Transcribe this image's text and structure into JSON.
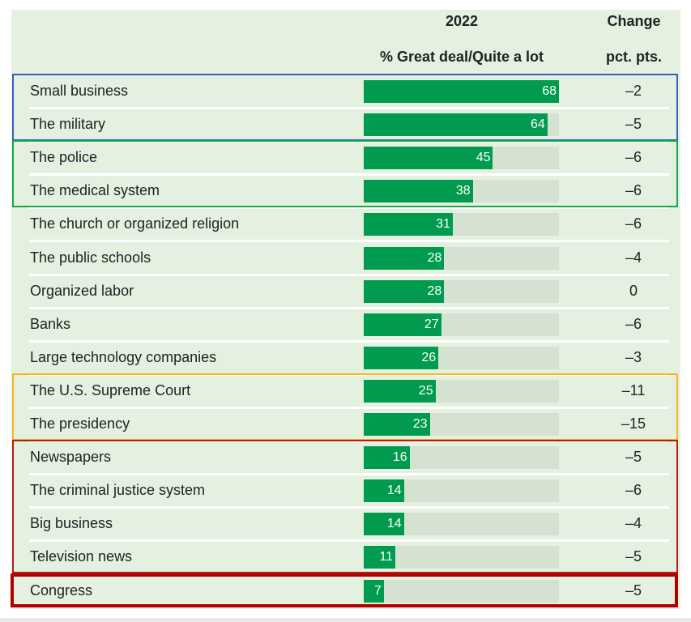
{
  "header": {
    "col1_top": "2022",
    "col1_sub": "% Great deal/Quite a lot",
    "col2_top": "Change",
    "col2_sub": "pct. pts."
  },
  "colors": {
    "bar": "#009b4e",
    "track": "#d5e2d2",
    "panel": "#e4f1e1",
    "group_blue": "#3b5fbf",
    "group_green": "#1aa64a",
    "group_yellow": "#f2b81e",
    "group_red": "#b31c1c",
    "group_red_dark": "#b00000"
  },
  "chart_data": {
    "type": "bar",
    "orientation": "horizontal",
    "title": "",
    "xlabel": "% Great deal/Quite a lot",
    "xlim": [
      0,
      68
    ],
    "categories": [
      "Small business",
      "The military",
      "The police",
      "The medical system",
      "The church or organized religion",
      "The public schools",
      "Organized labor",
      "Banks",
      "Large technology companies",
      "The U.S. Supreme Court",
      "The presidency",
      "Newspapers",
      "The criminal justice system",
      "Big business",
      "Television news",
      "Congress"
    ],
    "values": [
      68,
      64,
      45,
      38,
      31,
      28,
      28,
      27,
      26,
      25,
      23,
      16,
      14,
      14,
      11,
      7
    ],
    "change": [
      "–2",
      "–5",
      "–6",
      "–6",
      "–6",
      "–4",
      "0",
      "–6",
      "–3",
      "–11",
      "–15",
      "–5",
      "–6",
      "–4",
      "–5",
      "–5"
    ],
    "groups": [
      {
        "name": "blue",
        "rows": [
          0,
          1
        ]
      },
      {
        "name": "green",
        "rows": [
          2,
          3
        ]
      },
      {
        "name": "yellow",
        "rows": [
          9,
          10
        ]
      },
      {
        "name": "red",
        "rows": [
          11,
          12,
          13,
          14
        ]
      },
      {
        "name": "red_dark",
        "rows": [
          15
        ]
      }
    ]
  }
}
